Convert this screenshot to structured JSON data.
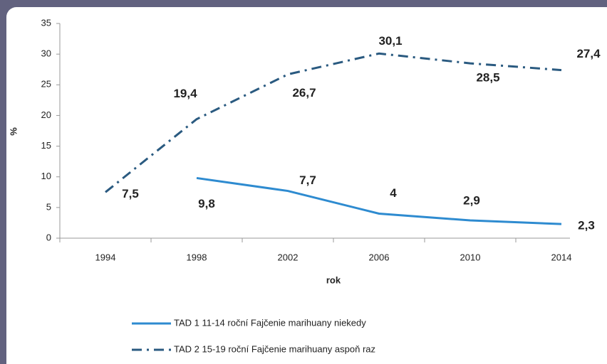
{
  "chart_data": {
    "type": "line",
    "categories": [
      "1994",
      "1998",
      "2002",
      "2006",
      "2010",
      "2014"
    ],
    "series": [
      {
        "name": "TAD 1 11-14 roční Fajčenie marihuany niekedy",
        "color": "#2e8bd0",
        "dash": "solid",
        "values": [
          null,
          9.8,
          7.7,
          4,
          2.9,
          2.3
        ],
        "value_labels": [
          null,
          "9,8",
          "7,7",
          "4",
          "2,9",
          "2,3"
        ]
      },
      {
        "name": "TAD 2 15-19 roční Fajčenie marihuany aspoň raz",
        "color": "#2a5a80",
        "dash": "dash-dot",
        "values": [
          7.5,
          19.4,
          26.7,
          30.1,
          28.5,
          27.4
        ],
        "value_labels": [
          "7,5",
          "19,4",
          "26,7",
          "30,1",
          "28,5",
          "27,4"
        ]
      }
    ],
    "ylabel": "%",
    "xlabel": "rok",
    "ylim": [
      0,
      35
    ],
    "yticks": [
      0,
      5,
      10,
      15,
      20,
      25,
      30,
      35
    ],
    "grid": false,
    "legend": "bottom"
  }
}
